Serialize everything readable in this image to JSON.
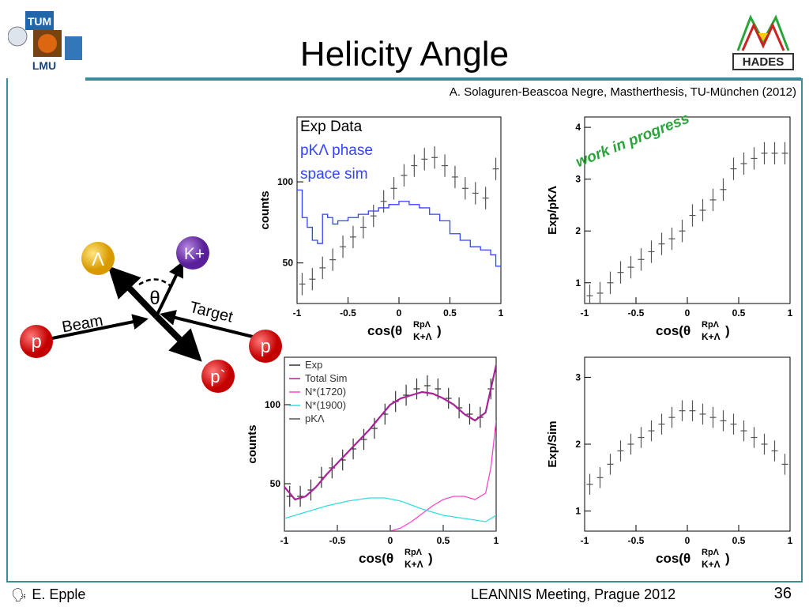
{
  "slide": {
    "title": "Helicity Angle",
    "citation": "A. Solaguren-Beascoa Negre, Mastherthesis, TU-München (2012)",
    "logos": {
      "tum": "TUM",
      "lmu": "LMU",
      "hades": "HADES"
    },
    "footer": {
      "author": "E. Epple",
      "meeting": "LEANNIS Meeting, Prague 2012",
      "page": "36"
    },
    "stamp": "work in progress",
    "colors": {
      "frame": "#3d8a9a",
      "exp": "#555555",
      "sim_phase": "#3344ff",
      "total_sim": "#aa2299",
      "n1720": "#ff44cc",
      "n1900": "#33dddd"
    }
  },
  "diagram": {
    "particles": {
      "lambda": "Λ",
      "kplus": "K+",
      "p_beam": "p",
      "p_target": "p",
      "p_out": "p`"
    },
    "labels": {
      "beam": "Beam",
      "target": "Target",
      "theta": "θ"
    }
  },
  "chart_data": [
    {
      "type": "scatter",
      "panel": "top-left",
      "ylabel": "counts",
      "xlabel": "cos(θ",
      "xlabel_sup": "RpΛ",
      "xlabel_sub": "K+Λ",
      "xlabel_close": ")",
      "xlim": [
        -1,
        1
      ],
      "ylim": [
        25,
        140
      ],
      "xticks": [
        -1,
        -0.5,
        0,
        0.5,
        1
      ],
      "xtick_labels": [
        "-1",
        "-0.5",
        "0",
        "0.5",
        "1"
      ],
      "yticks": [
        50,
        100
      ],
      "ytick_labels": [
        "50",
        "100"
      ],
      "legend": [
        "Exp Data",
        "pKΛ phase",
        "space sim"
      ],
      "series": [
        {
          "name": "Exp Data",
          "style": "errorbar",
          "x": [
            -0.95,
            -0.85,
            -0.75,
            -0.65,
            -0.55,
            -0.45,
            -0.35,
            -0.25,
            -0.15,
            -0.05,
            0.05,
            0.15,
            0.25,
            0.35,
            0.45,
            0.55,
            0.65,
            0.75,
            0.85,
            0.95
          ],
          "y": [
            37,
            40,
            47,
            52,
            60,
            66,
            72,
            79,
            88,
            96,
            104,
            110,
            114,
            115,
            110,
            103,
            96,
            93,
            90,
            108
          ]
        },
        {
          "name": "pKΛ phase space sim",
          "style": "step",
          "x": [
            -1,
            -0.95,
            -0.9,
            -0.85,
            -0.8,
            -0.75,
            -0.7,
            -0.65,
            -0.6,
            -0.5,
            -0.4,
            -0.3,
            -0.2,
            -0.1,
            0,
            0.1,
            0.2,
            0.3,
            0.4,
            0.5,
            0.6,
            0.7,
            0.8,
            0.9,
            0.95,
            1
          ],
          "y": [
            95,
            78,
            72,
            64,
            62,
            80,
            78,
            74,
            76,
            78,
            80,
            82,
            84,
            86,
            88,
            86,
            84,
            80,
            76,
            68,
            64,
            60,
            58,
            55,
            48,
            52
          ]
        }
      ]
    },
    {
      "type": "scatter",
      "panel": "top-right",
      "ylabel": "Exp/pKΛ",
      "xlabel": "cos(θ",
      "xlabel_sup": "RpΛ",
      "xlabel_sub": "K+Λ",
      "xlabel_close": ")",
      "xlim": [
        -1,
        1
      ],
      "ylim": [
        0.6,
        4.2
      ],
      "xticks": [
        -1,
        -0.5,
        0,
        0.5,
        1
      ],
      "xtick_labels": [
        "-1",
        "-0.5",
        "0",
        "0.5",
        "1"
      ],
      "yticks": [
        1,
        2,
        3,
        4
      ],
      "ytick_labels": [
        "1",
        "2",
        "3",
        "4"
      ],
      "series": [
        {
          "name": "Exp/pKΛ",
          "style": "errorbar",
          "x": [
            -0.95,
            -0.85,
            -0.75,
            -0.65,
            -0.55,
            -0.45,
            -0.35,
            -0.25,
            -0.15,
            -0.05,
            0.05,
            0.15,
            0.25,
            0.35,
            0.45,
            0.55,
            0.65,
            0.75,
            0.85,
            0.95
          ],
          "y": [
            0.75,
            0.8,
            1.0,
            1.2,
            1.3,
            1.45,
            1.6,
            1.75,
            1.85,
            2.0,
            2.3,
            2.4,
            2.6,
            2.8,
            3.2,
            3.3,
            3.4,
            3.5,
            3.5,
            3.5
          ]
        }
      ]
    },
    {
      "type": "line",
      "panel": "bottom-left",
      "ylabel": "counts",
      "xlabel": "cos(θ",
      "xlabel_sup": "RpΛ",
      "xlabel_sub": "K+Λ",
      "xlabel_close": ")",
      "xlim": [
        -1,
        1
      ],
      "ylim": [
        20,
        130
      ],
      "xticks": [
        -1,
        -0.5,
        0,
        0.5,
        1
      ],
      "xtick_labels": [
        "-1",
        "-0.5",
        "0",
        "0.5",
        "1"
      ],
      "yticks": [
        50,
        100
      ],
      "ytick_labels": [
        "50",
        "100"
      ],
      "legend": [
        "Exp",
        "Total Sim",
        "N*(1720)",
        "N*(1900)",
        "pKΛ"
      ],
      "series": [
        {
          "name": "Exp",
          "style": "errorbar",
          "x": [
            -0.95,
            -0.85,
            -0.75,
            -0.65,
            -0.55,
            -0.45,
            -0.35,
            -0.25,
            -0.15,
            -0.05,
            0.05,
            0.15,
            0.25,
            0.35,
            0.45,
            0.55,
            0.65,
            0.75,
            0.85,
            0.95
          ],
          "y": [
            42,
            42,
            46,
            54,
            60,
            65,
            72,
            78,
            85,
            94,
            102,
            106,
            110,
            112,
            110,
            104,
            98,
            94,
            92,
            110
          ]
        },
        {
          "name": "Total Sim",
          "style": "line",
          "x": [
            -1,
            -0.9,
            -0.8,
            -0.7,
            -0.6,
            -0.5,
            -0.4,
            -0.3,
            -0.2,
            -0.1,
            0,
            0.1,
            0.2,
            0.3,
            0.4,
            0.5,
            0.6,
            0.7,
            0.8,
            0.9,
            0.95,
            1
          ],
          "y": [
            48,
            40,
            42,
            48,
            56,
            63,
            70,
            77,
            84,
            92,
            100,
            104,
            106,
            108,
            107,
            104,
            100,
            94,
            90,
            95,
            110,
            125
          ]
        },
        {
          "name": "N*(1720)",
          "style": "line",
          "x": [
            -1,
            -0.8,
            -0.6,
            -0.4,
            -0.2,
            0,
            0.1,
            0.2,
            0.3,
            0.4,
            0.5,
            0.6,
            0.7,
            0.8,
            0.9,
            0.95,
            1
          ],
          "y": [
            20,
            20,
            20,
            20,
            20,
            20,
            22,
            26,
            31,
            36,
            40,
            42,
            42,
            40,
            44,
            60,
            90
          ]
        },
        {
          "name": "N*(1900)",
          "style": "line",
          "x": [
            -1,
            -0.8,
            -0.6,
            -0.4,
            -0.2,
            -0.05,
            0.1,
            0.3,
            0.5,
            0.7,
            0.9,
            1
          ],
          "y": [
            28,
            32,
            36,
            39,
            41,
            41,
            39,
            34,
            30,
            28,
            26,
            30
          ]
        },
        {
          "name": "pKΛ",
          "style": "line",
          "x": [
            -1,
            -0.8,
            -0.6,
            -0.4,
            -0.2,
            0,
            0.2,
            0.4,
            0.6,
            0.8,
            1
          ],
          "y": [
            20,
            20,
            20,
            20,
            20,
            20,
            20,
            20,
            20,
            20,
            20
          ]
        }
      ]
    },
    {
      "type": "scatter",
      "panel": "bottom-right",
      "ylabel": "Exp/Sim",
      "xlabel": "cos(θ",
      "xlabel_sup": "RpΛ",
      "xlabel_sub": "K+Λ",
      "xlabel_close": ")",
      "xlim": [
        -1,
        1
      ],
      "ylim": [
        0.7,
        3.3
      ],
      "xticks": [
        -1,
        -0.5,
        0,
        0.5,
        1
      ],
      "xtick_labels": [
        "-1",
        "-0.5",
        "0",
        "0.5",
        "1"
      ],
      "yticks": [
        1,
        2,
        3
      ],
      "ytick_labels": [
        "1",
        "2",
        "3"
      ],
      "series": [
        {
          "name": "Exp/Sim",
          "style": "errorbar",
          "x": [
            -0.95,
            -0.85,
            -0.75,
            -0.65,
            -0.55,
            -0.45,
            -0.35,
            -0.25,
            -0.15,
            -0.05,
            0.05,
            0.15,
            0.25,
            0.35,
            0.45,
            0.55,
            0.65,
            0.75,
            0.85,
            0.95
          ],
          "y": [
            1.4,
            1.5,
            1.7,
            1.9,
            2.0,
            2.1,
            2.2,
            2.3,
            2.4,
            2.5,
            2.5,
            2.45,
            2.4,
            2.35,
            2.3,
            2.2,
            2.1,
            2.0,
            1.9,
            1.7
          ]
        }
      ]
    }
  ]
}
